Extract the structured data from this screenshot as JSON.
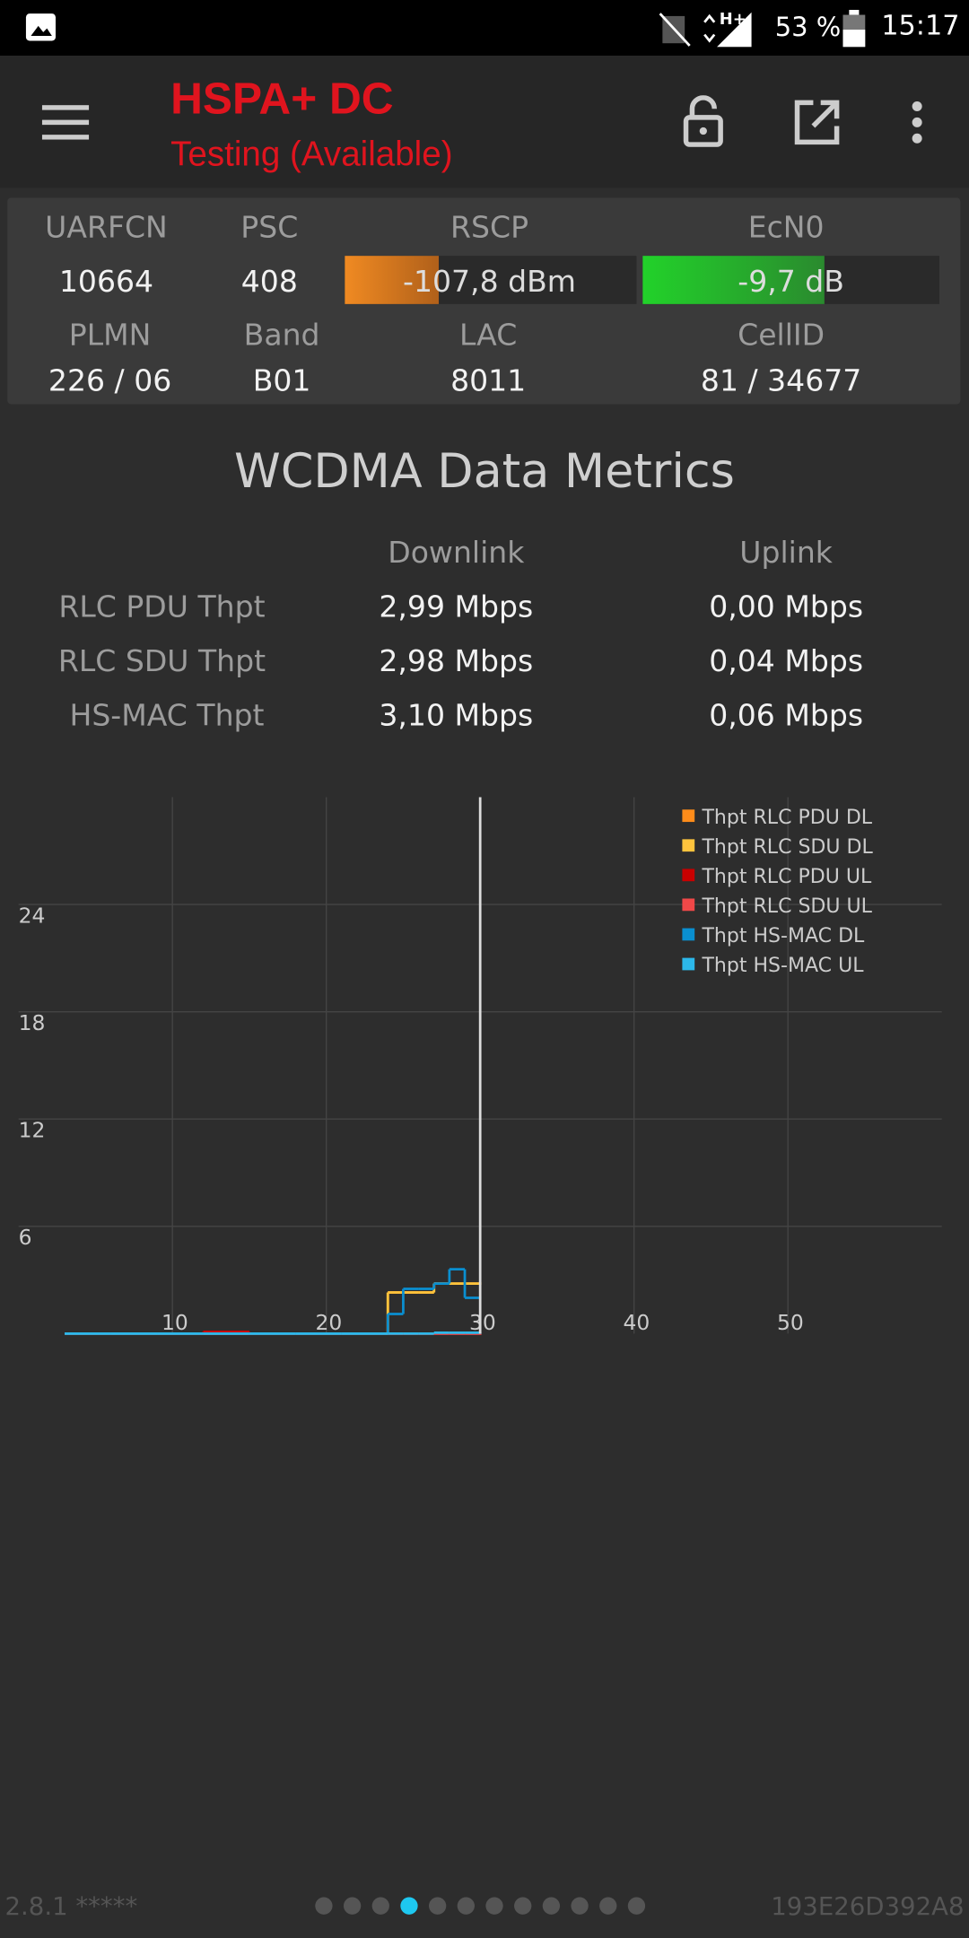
{
  "status_bar": {
    "battery": "53 %",
    "time": "15:17"
  },
  "app_bar": {
    "title": "HSPA+ DC",
    "subtitle": "Testing (Available)"
  },
  "cell_info": {
    "labels": [
      "UARFCN",
      "PSC",
      "RSCP",
      "EcN0",
      "PLMN",
      "Band",
      "LAC",
      "CellID"
    ],
    "values": [
      "10664",
      "408",
      "-107,8 dBm",
      "-9,7 dB",
      "226 / 06",
      "B01",
      "8011",
      "81 / 34677"
    ]
  },
  "metrics": {
    "title": "WCDMA Data Metrics",
    "headers": [
      "Downlink",
      "Uplink"
    ],
    "rows": [
      [
        "RLC PDU Thpt",
        "2,99 Mbps",
        "0,00 Mbps"
      ],
      [
        "RLC SDU Thpt",
        "2,98 Mbps",
        "0,04 Mbps"
      ],
      [
        "HS-MAC Thpt",
        "3,10 Mbps",
        "0,06 Mbps"
      ]
    ]
  },
  "chart_data": {
    "type": "line",
    "step": true,
    "x": [
      3,
      6,
      9,
      12,
      15,
      18,
      21,
      24,
      25,
      26,
      27,
      28,
      29,
      30
    ],
    "series": [
      {
        "name": "Thpt RLC PDU DL",
        "color": "#ff8c1a",
        "values": [
          0,
          0,
          0,
          0,
          0,
          0,
          0,
          2.3,
          2.3,
          2.3,
          2.8,
          2.8,
          2.8,
          2.8
        ]
      },
      {
        "name": "Thpt RLC SDU DL",
        "color": "#ffc43d",
        "values": [
          0,
          0,
          0,
          0,
          0,
          0,
          0,
          2.3,
          2.3,
          2.3,
          2.8,
          2.8,
          2.8,
          2.8
        ]
      },
      {
        "name": "Thpt RLC PDU UL",
        "color": "#c80000",
        "values": [
          0,
          0,
          0,
          0.1,
          0,
          0,
          0,
          0,
          0,
          0,
          0,
          0,
          0,
          0
        ]
      },
      {
        "name": "Thpt RLC SDU UL",
        "color": "#f04848",
        "values": [
          0,
          0,
          0,
          0,
          0,
          0,
          0,
          0,
          0,
          0,
          0,
          0,
          0,
          0
        ]
      },
      {
        "name": "Thpt HS-MAC DL",
        "color": "#0a8fd0",
        "values": [
          0,
          0,
          0,
          0,
          0,
          0,
          0,
          1.1,
          2.5,
          2.5,
          2.8,
          3.6,
          2.0,
          2.0
        ]
      },
      {
        "name": "Thpt HS-MAC UL",
        "color": "#2cb8ea",
        "values": [
          0,
          0,
          0,
          0,
          0,
          0,
          0,
          0,
          0,
          0,
          0.05,
          0.05,
          0.05,
          0.05
        ]
      }
    ],
    "xlim": [
      0,
      60
    ],
    "ylim": [
      0,
      30
    ],
    "xticks": [
      10,
      20,
      30,
      40,
      50
    ],
    "yticks": [
      6,
      12,
      18,
      24
    ],
    "grid": true,
    "cursor_x": 30,
    "legend": "upper right"
  },
  "footer": {
    "version": "2.8.1 *****",
    "device_id": "193E26D392A8"
  }
}
